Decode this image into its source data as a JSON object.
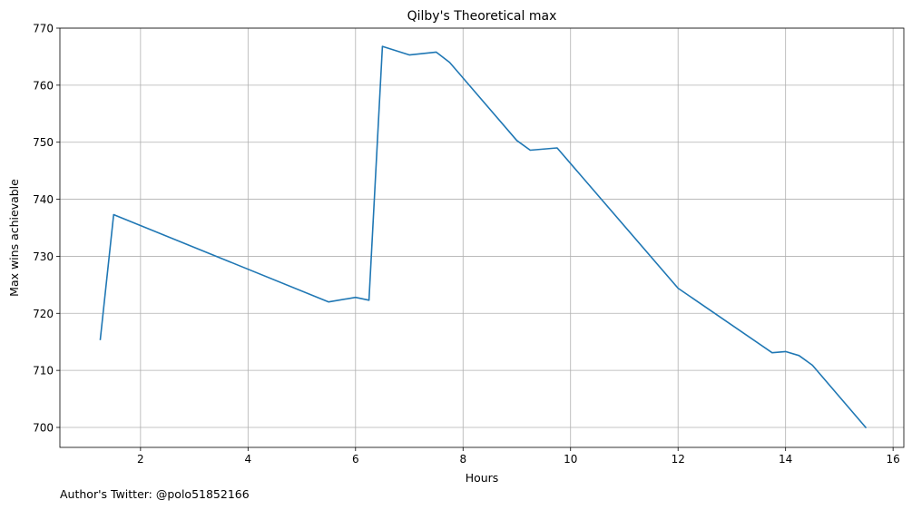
{
  "chart_data": {
    "type": "line",
    "title": "Qilby's Theoretical max",
    "xlabel": "Hours",
    "ylabel": "Max wins achievable",
    "xlim": [
      0.5,
      16.2
    ],
    "ylim": [
      696.5,
      770
    ],
    "xticks": [
      2,
      4,
      6,
      8,
      10,
      12,
      14,
      16
    ],
    "yticks": [
      700,
      710,
      720,
      730,
      740,
      750,
      760,
      770
    ],
    "grid": true,
    "color": "#1f77b4",
    "series": [
      {
        "x": [
          1.25,
          1.5,
          5.5,
          6.0,
          6.25,
          6.5,
          7.0,
          7.5,
          7.75,
          9.0,
          9.25,
          9.75,
          12.0,
          13.75,
          14.0,
          14.25,
          14.5,
          15.5
        ],
        "values": [
          715.3,
          737.3,
          722.0,
          722.8,
          722.3,
          766.8,
          765.3,
          765.8,
          764.0,
          750.3,
          748.6,
          749.0,
          724.4,
          713.1,
          713.3,
          712.6,
          710.9,
          699.9
        ]
      }
    ]
  },
  "footer": {
    "text": "Author's Twitter: @polo51852166"
  }
}
